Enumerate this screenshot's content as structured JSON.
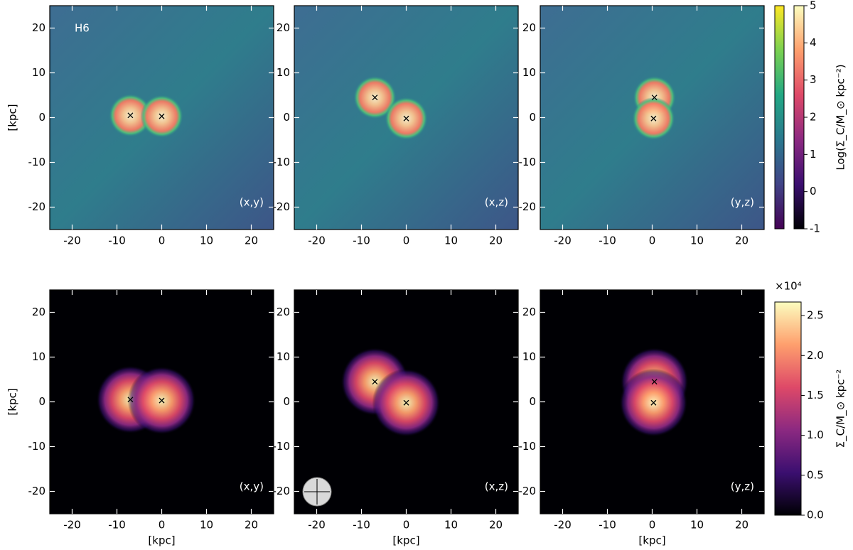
{
  "chart_data": [
    {
      "type": "image",
      "label": "H6",
      "annotation": "(x,y)",
      "colormap": "viridis",
      "xlim": [
        -25,
        25
      ],
      "ylim": [
        -25,
        25
      ],
      "xticks": [
        -20,
        -10,
        0,
        10,
        20
      ],
      "yticks": [
        -20,
        -10,
        0,
        10,
        20
      ],
      "ylabel": "[kpc]",
      "markers": {
        "x": [
          -7,
          0
        ],
        "y": [
          0.5,
          0.3
        ]
      }
    },
    {
      "type": "image",
      "annotation": "(x,z)",
      "colormap": "viridis",
      "xlim": [
        -25,
        25
      ],
      "ylim": [
        -25,
        25
      ],
      "xticks": [
        -20,
        -10,
        0,
        10,
        20
      ],
      "yticks": [
        -20,
        -10,
        0,
        10,
        20
      ],
      "markers": {
        "x": [
          -7,
          0
        ],
        "y": [
          4.5,
          -0.2
        ]
      }
    },
    {
      "type": "image",
      "annotation": "(y,z)",
      "colormap": "viridis",
      "xlim": [
        -25,
        25
      ],
      "ylim": [
        -25,
        25
      ],
      "xticks": [
        -20,
        -10,
        0,
        10,
        20
      ],
      "yticks": [
        -20,
        -10,
        0,
        10,
        20
      ],
      "markers": {
        "x": [
          0.5,
          0.3
        ],
        "y": [
          4.5,
          -0.2
        ]
      }
    },
    {
      "type": "image",
      "annotation": "(x,y)",
      "colormap": "magma",
      "xlim": [
        -25,
        25
      ],
      "ylim": [
        -25,
        25
      ],
      "xticks": [
        -20,
        -10,
        0,
        10,
        20
      ],
      "yticks": [
        -20,
        -10,
        0,
        10,
        20
      ],
      "xlabel": "[kpc]",
      "ylabel": "[kpc]",
      "markers": {
        "x": [
          -7,
          0
        ],
        "y": [
          0.5,
          0.3
        ]
      }
    },
    {
      "type": "image",
      "annotation": "(x,z)",
      "colormap": "magma",
      "xlim": [
        -25,
        25
      ],
      "ylim": [
        -25,
        25
      ],
      "xticks": [
        -20,
        -10,
        0,
        10,
        20
      ],
      "yticks": [
        -20,
        -10,
        0,
        10,
        20
      ],
      "xlabel": "[kpc]",
      "markers": {
        "x": [
          -7,
          0
        ],
        "y": [
          4.5,
          -0.2
        ]
      }
    },
    {
      "type": "image",
      "annotation": "(y,z)",
      "colormap": "magma",
      "xlim": [
        -25,
        25
      ],
      "ylim": [
        -25,
        25
      ],
      "xticks": [
        -20,
        -10,
        0,
        10,
        20
      ],
      "yticks": [
        -20,
        -10,
        0,
        10,
        20
      ],
      "xlabel": "[kpc]",
      "markers": {
        "x": [
          0.5,
          0.3
        ],
        "y": [
          4.5,
          -0.2
        ]
      }
    },
    {
      "type": "colorbar",
      "label": "Log(Σ_C/M_⊙ kpc⁻²)",
      "colormaps": [
        "viridis",
        "magma"
      ],
      "ylim": [
        -1,
        5
      ],
      "yticks": [
        -1,
        0,
        1,
        2,
        3,
        4,
        5
      ]
    },
    {
      "type": "colorbar",
      "label": "Σ_C/M_⊙ kpc⁻²",
      "offset_label": "×10⁴",
      "colormaps": [
        "magma"
      ],
      "ylim": [
        0,
        2.67
      ],
      "yticks": [
        {
          "value": 0,
          "label": "0.0"
        },
        {
          "value": 0.5,
          "label": "0.5"
        },
        {
          "value": 1,
          "label": "1.0"
        },
        {
          "value": 1.5,
          "label": "1.5"
        },
        {
          "value": 2,
          "label": "2.0"
        },
        {
          "value": 2.5,
          "label": "2.5"
        }
      ]
    }
  ]
}
